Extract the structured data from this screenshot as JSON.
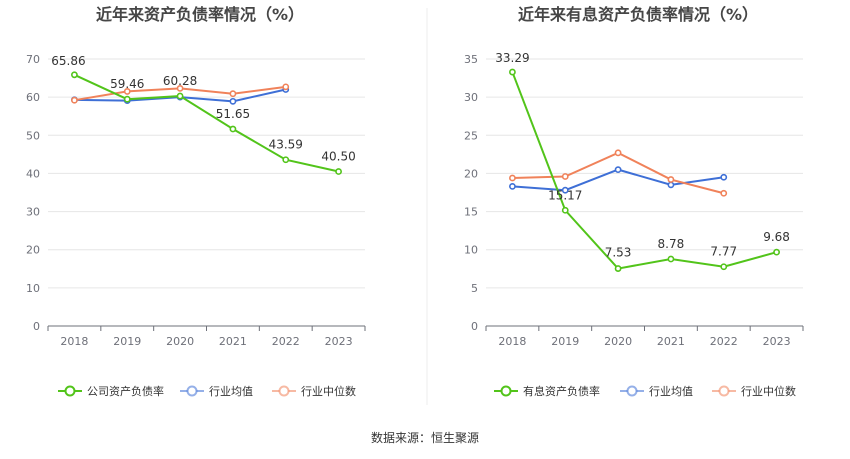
{
  "source": "数据来源：恒生聚源",
  "chart_data": [
    {
      "type": "line",
      "title": "近年来资产负债率情况（%）",
      "categories": [
        "2018",
        "2019",
        "2020",
        "2021",
        "2022",
        "2023"
      ],
      "ylim": [
        0,
        70
      ],
      "yticks": [
        0,
        10,
        20,
        30,
        40,
        50,
        60,
        70
      ],
      "grid": true,
      "legend_position": "bottom",
      "series": [
        {
          "name": "公司资产负债率",
          "color": "#52c41a",
          "values": [
            65.86,
            59.46,
            60.28,
            51.65,
            43.59,
            40.5
          ],
          "labels": [
            "65.86",
            "59.46",
            "60.28",
            "51.65",
            "43.59",
            "40.50"
          ]
        },
        {
          "name": "行业均值",
          "color": "#3e6fd6",
          "values": [
            59.3,
            59.1,
            60.0,
            58.9,
            62.0,
            null
          ]
        },
        {
          "name": "行业中位数",
          "color": "#f0825a",
          "values": [
            59.2,
            61.5,
            62.3,
            60.9,
            62.7,
            null
          ]
        }
      ]
    },
    {
      "type": "line",
      "title": "近年来有息资产负债率情况（%）",
      "categories": [
        "2018",
        "2019",
        "2020",
        "2021",
        "2022",
        "2023"
      ],
      "ylim": [
        0,
        35
      ],
      "yticks": [
        0,
        5,
        10,
        15,
        20,
        25,
        30,
        35
      ],
      "grid": true,
      "legend_position": "bottom",
      "series": [
        {
          "name": "有息资产负债率",
          "color": "#52c41a",
          "values": [
            33.29,
            15.17,
            7.53,
            8.78,
            7.77,
            9.68
          ],
          "labels": [
            "33.29",
            "15.17",
            "7.53",
            "8.78",
            "7.77",
            "9.68"
          ]
        },
        {
          "name": "行业均值",
          "color": "#3e6fd6",
          "values": [
            18.3,
            17.8,
            20.5,
            18.5,
            19.5,
            null
          ]
        },
        {
          "name": "行业中位数",
          "color": "#f0825a",
          "values": [
            19.4,
            19.6,
            22.7,
            19.2,
            17.4,
            null
          ]
        }
      ]
    }
  ]
}
